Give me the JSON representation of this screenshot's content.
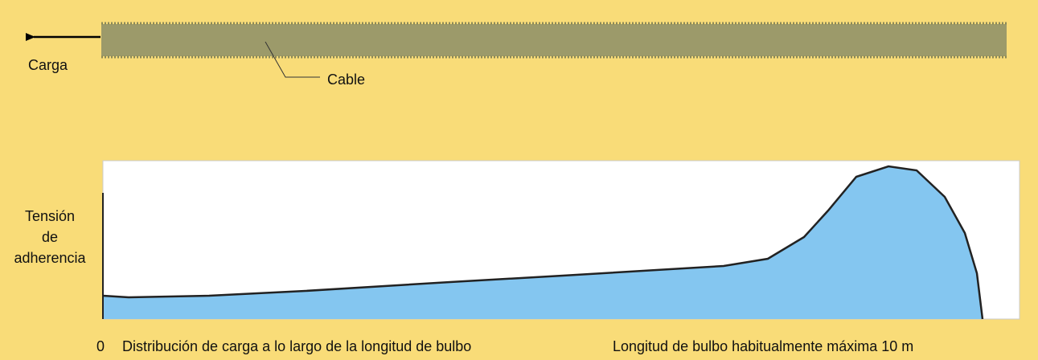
{
  "cable": {
    "load_label": "Carga",
    "cable_label": "Cable"
  },
  "diagram": {
    "y_label": [
      "Tensión",
      "de",
      "adherencia"
    ],
    "origin_label": "0",
    "x_caption": "Distribución de carga a lo largo de la longitud de bulbo",
    "length_note": "Longitud de bulbo habitualmente máxima 10 m"
  }
}
